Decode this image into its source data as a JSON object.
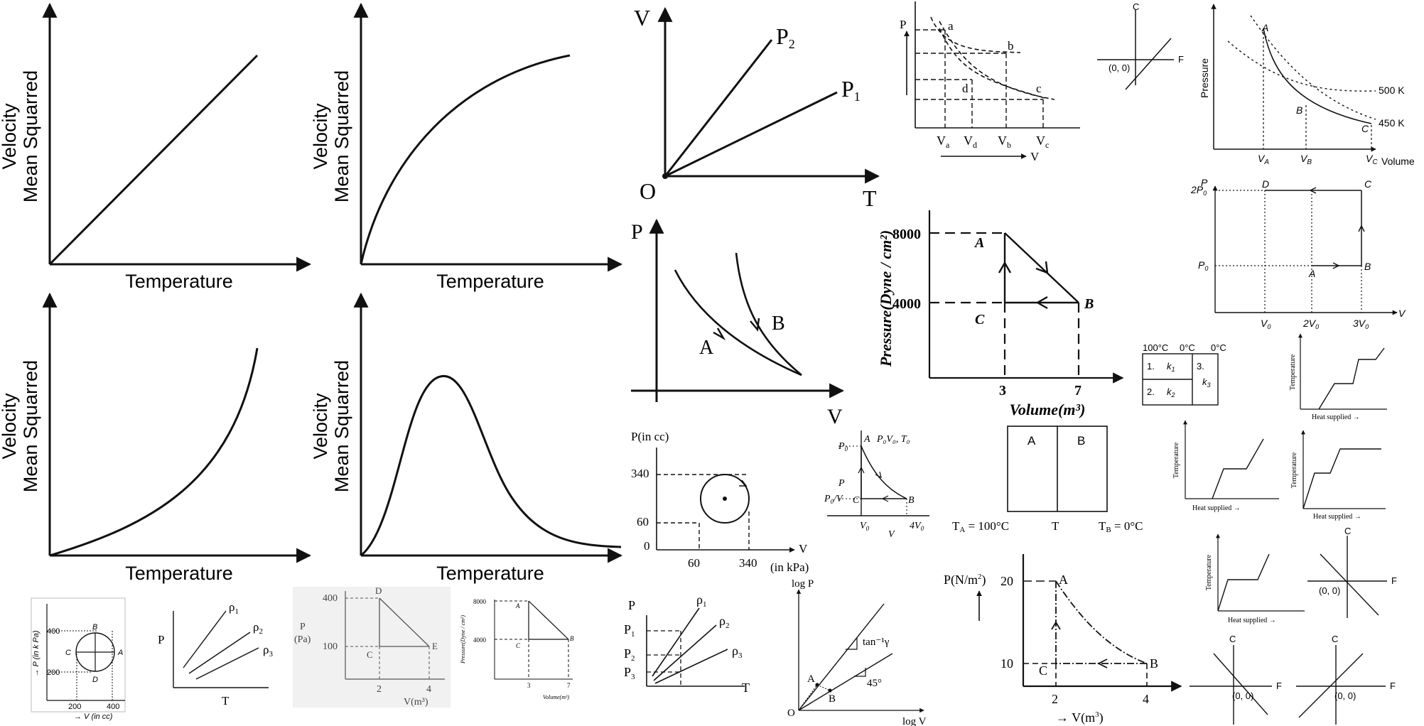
{
  "velocity_panels": [
    {
      "ylabel_line1": "Mean Squarred",
      "ylabel_line2": "Velocity",
      "xlabel": "Temperature",
      "shape": "linear"
    },
    {
      "ylabel_line1": "Mean Squarred",
      "ylabel_line2": "Velocity",
      "xlabel": "Temperature",
      "shape": "concave"
    },
    {
      "ylabel_line1": "Mean Squarred",
      "ylabel_line2": "Velocity",
      "xlabel": "Temperature",
      "shape": "convex"
    },
    {
      "ylabel_line1": "Mean Squarred",
      "ylabel_line2": "Velocity",
      "xlabel": "Temperature",
      "shape": "peak"
    }
  ],
  "vt_graph": {
    "y": "V",
    "x": "T",
    "origin": "O",
    "line1": "P",
    "line1_sub": "2",
    "line2": "P",
    "line2_sub": "1"
  },
  "pv_top": {
    "y": "P",
    "x": "V",
    "a": "a",
    "b": "b",
    "c": "c",
    "d": "d",
    "va": "V",
    "va_sub": "a",
    "vd": "V",
    "vd_sub": "d",
    "vb": "V",
    "vb_sub": "b",
    "vc": "V",
    "vc_sub": "c"
  },
  "cf_lines": {
    "c": "C",
    "f": "F",
    "origin": "(0, 0)"
  },
  "isotherm": {
    "y": "Pressure",
    "x": "Volume",
    "a": "A",
    "b": "B",
    "c": "C",
    "t1": "500 K",
    "t2": "450 K",
    "va": "V",
    "va_sub": "A",
    "vb": "V",
    "vb_sub": "B",
    "vc": "V",
    "vc_sub": "C"
  },
  "pv_ab": {
    "y": "P",
    "x": "V",
    "a": "A",
    "b": "B"
  },
  "pv_big": {
    "ylabel": "Pressure(Dyne / cm²)",
    "xlabel": "Volume(m³)",
    "y1": "8000",
    "y2": "4000",
    "x1": "3",
    "x2": "7",
    "a": "A",
    "b": "B",
    "c": "C"
  },
  "cycle_2p0": {
    "p": "P",
    "v": "V",
    "p2": "2P",
    "p2_sub": "0",
    "p1": "P",
    "p1_sub": "0",
    "v1": "V",
    "v1_sub": "0",
    "v2": "2V",
    "v2_sub": "0",
    "v3": "3V",
    "v3_sub": "0",
    "a": "A",
    "b": "B",
    "c": "C",
    "d": "D"
  },
  "circle_cc": {
    "ylabel": "P(in cc)",
    "xlabel": "V",
    "xunit": "(in kPa)",
    "y1": "340",
    "y2": "60",
    "y0": "0",
    "x1": "60",
    "x2": "340"
  },
  "cycle_p0v0": {
    "a": "A",
    "b": "B",
    "c": "C",
    "state": "P₀V₀, T₀",
    "p0": "P",
    "p0_sub": "0",
    "p": "P",
    "p04": "P",
    "p04_tail": "/V",
    "v0": "V",
    "v0_sub": "0",
    "v4": "4V",
    "v4_sub": "0",
    "v": "V"
  },
  "two_box": {
    "a": "A",
    "b": "B",
    "ta": "T",
    "ta_tail": " = 100°C",
    "t": "T",
    "tb": "T",
    "tb_tail": " = 0°C",
    "ta_sub": "A",
    "tb_sub": "B"
  },
  "rod_table": {
    "h1": "100°C",
    "h2": "0°C",
    "h3": "0°C",
    "r1": "1.",
    "k1": "k",
    "k1_sub": "1",
    "r2": "2.",
    "k2": "k",
    "k2_sub": "2",
    "r3": "3.",
    "k3": "k",
    "k3_sub": "3"
  },
  "heat_graphs": {
    "ylabel": "Temperature",
    "xlabel": "Heat supplied →"
  },
  "circle_kpa": {
    "ylabel": "→ P (in k Pa)",
    "xlabel": "→ V (in cc)",
    "y1": "400",
    "y2": "200",
    "x1": "200",
    "x2": "400",
    "a": "A",
    "b": "B",
    "c": "C",
    "d": "D"
  },
  "rho_small": {
    "y": "P",
    "x": "T",
    "r1": "ρ",
    "r1_sub": "1",
    "r2": "ρ",
    "r2_sub": "2",
    "r3": "ρ",
    "r3_sub": "3"
  },
  "pa_graph": {
    "p": "P",
    "unit": "(Pa)",
    "y1": "400",
    "y2": "100",
    "x1": "2",
    "x2": "4",
    "xlabel": "V(m³)",
    "c": "C",
    "d": "D",
    "e": "E"
  },
  "pv_small": {
    "ylabel": "Pressure(Dyne / cm²)",
    "xlabel": "Volume(m³)",
    "y1": "8000",
    "y2": "4000",
    "x1": "3",
    "x2": "7",
    "a": "A",
    "b": "B",
    "c": "C"
  },
  "rho_big": {
    "y": "P",
    "x": "T",
    "p1": "P",
    "p1_sub": "1",
    "p2": "P",
    "p2_sub": "2",
    "p3": "P",
    "p3_sub": "3",
    "r1": "ρ",
    "r1_sub": "1",
    "r2": "ρ",
    "r2_sub": "2",
    "r3": "ρ",
    "r3_sub": "3"
  },
  "log_graph": {
    "y": "log P",
    "x": "log V",
    "o": "O",
    "a": "A",
    "b": "B",
    "gamma": "tan⁻¹γ",
    "angle": "45°"
  },
  "nm2_graph": {
    "ylabel": "P(N/m",
    "ylabel_sup": "2",
    "ylabel_end": ")",
    "xlabel": "→ V(m",
    "xlabel_sup": "3",
    "xlabel_end": ")",
    "y1": "20",
    "y2": "10",
    "x1": "2",
    "x2": "4",
    "a": "A",
    "b": "B",
    "c": "C"
  }
}
